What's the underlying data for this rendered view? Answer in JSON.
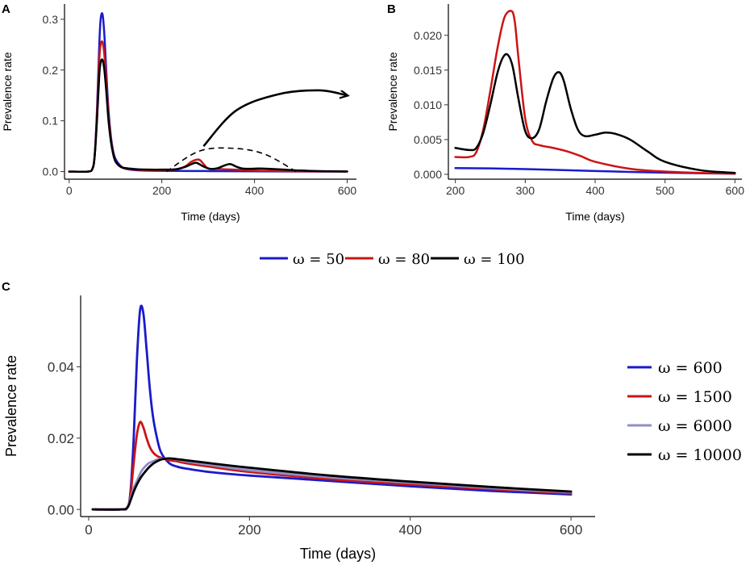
{
  "panels": {
    "a": {
      "tag": "A"
    },
    "b": {
      "tag": "B"
    },
    "c": {
      "tag": "C"
    }
  },
  "legend_top": {
    "items": [
      {
        "label": "ω = 50",
        "color": "#1a1acc"
      },
      {
        "label": "ω = 80",
        "color": "#cc1414"
      },
      {
        "label": "ω = 100",
        "color": "#000000"
      }
    ]
  },
  "legend_right": {
    "items": [
      {
        "label": "ω = 600",
        "color": "#1a1acc"
      },
      {
        "label": "ω = 1500",
        "color": "#cc1414"
      },
      {
        "label": "ω = 6000",
        "color": "#8f8fc8"
      },
      {
        "label": "ω = 10000",
        "color": "#000000"
      }
    ]
  },
  "chart_data": [
    {
      "id": "A",
      "type": "line",
      "title": "",
      "xlabel": "Time (days)",
      "ylabel": "Prevalence rate",
      "xlim": [
        -10,
        620
      ],
      "ylim": [
        -0.015,
        0.33
      ],
      "xticks": [
        0,
        200,
        400,
        600
      ],
      "yticks": [
        0.0,
        0.1,
        0.2,
        0.3
      ],
      "ytick_labels": [
        "0.0",
        "0.1",
        "0.2",
        "0.3"
      ],
      "series": [
        {
          "name": "ω = 50",
          "color": "#1a1acc",
          "x": [
            0,
            40,
            50,
            55,
            60,
            65,
            68,
            72,
            76,
            80,
            85,
            90,
            95,
            100,
            110,
            120,
            140,
            160,
            200,
            300,
            400,
            500,
            600
          ],
          "y": [
            0,
            0,
            0.005,
            0.03,
            0.12,
            0.25,
            0.3,
            0.31,
            0.27,
            0.2,
            0.12,
            0.07,
            0.04,
            0.025,
            0.012,
            0.006,
            0.003,
            0.002,
            0.0015,
            0.001,
            0.0005,
            0.0002,
            0.0001
          ]
        },
        {
          "name": "ω = 80",
          "color": "#cc1414",
          "x": [
            0,
            40,
            50,
            55,
            60,
            65,
            68,
            72,
            76,
            80,
            85,
            90,
            95,
            100,
            110,
            120,
            140,
            160,
            200,
            230,
            250,
            265,
            280,
            290,
            300,
            320,
            350,
            380,
            420,
            500,
            600
          ],
          "y": [
            0,
            0,
            0.005,
            0.03,
            0.11,
            0.22,
            0.25,
            0.255,
            0.23,
            0.18,
            0.11,
            0.065,
            0.035,
            0.02,
            0.01,
            0.006,
            0.004,
            0.003,
            0.003,
            0.004,
            0.01,
            0.02,
            0.0235,
            0.015,
            0.006,
            0.005,
            0.004,
            0.003,
            0.0015,
            0.0005,
            0.0001
          ]
        },
        {
          "name": "ω = 100",
          "color": "#000000",
          "x": [
            0,
            40,
            50,
            55,
            60,
            65,
            68,
            72,
            76,
            80,
            85,
            90,
            95,
            100,
            110,
            120,
            140,
            160,
            200,
            230,
            250,
            265,
            275,
            290,
            305,
            320,
            335,
            348,
            360,
            375,
            390,
            410,
            430,
            460,
            500,
            550,
            600
          ],
          "y": [
            0,
            0,
            0.005,
            0.03,
            0.1,
            0.19,
            0.215,
            0.22,
            0.2,
            0.16,
            0.1,
            0.06,
            0.035,
            0.02,
            0.01,
            0.007,
            0.005,
            0.004,
            0.0038,
            0.0045,
            0.009,
            0.015,
            0.0172,
            0.01,
            0.0052,
            0.0065,
            0.012,
            0.0147,
            0.01,
            0.0058,
            0.0055,
            0.006,
            0.0055,
            0.004,
            0.002,
            0.0007,
            0.0002
          ]
        }
      ],
      "annotations": [
        {
          "type": "dashed-arc",
          "x": [
            210,
            280,
            350,
            420,
            490
          ],
          "y": [
            0.0,
            0.04,
            0.046,
            0.035,
            0.0
          ]
        },
        {
          "type": "arrow",
          "x": [
            290,
            360,
            450,
            540,
            600
          ],
          "y": [
            0.05,
            0.12,
            0.152,
            0.16,
            0.15
          ]
        }
      ]
    },
    {
      "id": "B",
      "type": "line",
      "title": "",
      "xlabel": "Time (days)",
      "ylabel": "Prevalence rate",
      "xlim": [
        190,
        610
      ],
      "ylim": [
        -0.0007,
        0.0245
      ],
      "xticks": [
        200,
        300,
        400,
        500,
        600
      ],
      "yticks": [
        0.0,
        0.005,
        0.01,
        0.015,
        0.02
      ],
      "ytick_labels": [
        "0.000",
        "0.005",
        "0.010",
        "0.015",
        "0.020"
      ],
      "series": [
        {
          "name": "ω = 50",
          "color": "#1a1acc",
          "x": [
            200,
            250,
            300,
            350,
            400,
            450,
            500,
            550,
            600
          ],
          "y": [
            0.0009,
            0.00085,
            0.00075,
            0.00062,
            0.00048,
            0.00035,
            0.00024,
            0.00015,
            0.0001
          ]
        },
        {
          "name": "ω = 80",
          "color": "#cc1414",
          "x": [
            200,
            220,
            230,
            240,
            250,
            260,
            270,
            280,
            285,
            290,
            300,
            310,
            320,
            340,
            360,
            380,
            400,
            450,
            500,
            550,
            600
          ],
          "y": [
            0.0025,
            0.0025,
            0.0032,
            0.0065,
            0.012,
            0.018,
            0.0225,
            0.0235,
            0.022,
            0.017,
            0.008,
            0.0048,
            0.0042,
            0.0038,
            0.0033,
            0.0026,
            0.0018,
            0.0008,
            0.0004,
            0.0002,
            0.0001
          ]
        },
        {
          "name": "ω = 100",
          "color": "#000000",
          "x": [
            200,
            220,
            230,
            240,
            250,
            260,
            268,
            275,
            282,
            290,
            300,
            310,
            320,
            330,
            340,
            348,
            355,
            365,
            375,
            385,
            400,
            415,
            430,
            450,
            475,
            500,
            550,
            600
          ],
          "y": [
            0.0038,
            0.0035,
            0.0038,
            0.006,
            0.01,
            0.0145,
            0.0168,
            0.0172,
            0.0155,
            0.011,
            0.0062,
            0.0052,
            0.0065,
            0.0105,
            0.0138,
            0.0147,
            0.0135,
            0.0095,
            0.0065,
            0.0055,
            0.0057,
            0.006,
            0.0058,
            0.005,
            0.0033,
            0.0018,
            0.0006,
            0.0002
          ]
        }
      ],
      "annotations": []
    },
    {
      "id": "C",
      "type": "line",
      "title": "",
      "xlabel": "Time (days)",
      "ylabel": "Prevalence rate",
      "xlim": [
        -10,
        630
      ],
      "ylim": [
        -0.002,
        0.06
      ],
      "xticks": [
        0,
        200,
        400,
        600
      ],
      "yticks": [
        0.0,
        0.02,
        0.04
      ],
      "ytick_labels": [
        "0.00",
        "0.02",
        "0.04"
      ],
      "series": [
        {
          "name": "ω = 600",
          "color": "#1a1acc",
          "x": [
            5,
            40,
            48,
            52,
            56,
            60,
            64,
            68,
            72,
            76,
            80,
            85,
            90,
            100,
            110,
            120,
            150,
            200,
            300,
            400,
            500,
            600
          ],
          "y": [
            0,
            0,
            0.0005,
            0.005,
            0.02,
            0.042,
            0.056,
            0.055,
            0.045,
            0.034,
            0.026,
            0.02,
            0.016,
            0.013,
            0.012,
            0.0115,
            0.0105,
            0.0095,
            0.008,
            0.0065,
            0.0052,
            0.0042
          ]
        },
        {
          "name": "ω = 1500",
          "color": "#cc1414",
          "x": [
            5,
            40,
            48,
            52,
            56,
            60,
            64,
            68,
            72,
            76,
            80,
            85,
            90,
            100,
            110,
            120,
            150,
            200,
            300,
            400,
            500,
            600
          ],
          "y": [
            0,
            0,
            0.0005,
            0.004,
            0.013,
            0.021,
            0.0245,
            0.023,
            0.02,
            0.0175,
            0.016,
            0.015,
            0.0145,
            0.0138,
            0.0135,
            0.013,
            0.012,
            0.0105,
            0.0085,
            0.007,
            0.0057,
            0.0045
          ]
        },
        {
          "name": "ω = 6000",
          "color": "#8f8fc8",
          "x": [
            5,
            40,
            48,
            52,
            56,
            60,
            65,
            70,
            75,
            80,
            85,
            90,
            100,
            110,
            120,
            150,
            200,
            300,
            400,
            500,
            600
          ],
          "y": [
            0,
            0,
            0.0005,
            0.003,
            0.006,
            0.008,
            0.0105,
            0.012,
            0.013,
            0.0135,
            0.014,
            0.0142,
            0.0142,
            0.014,
            0.0135,
            0.0125,
            0.011,
            0.009,
            0.0075,
            0.006,
            0.0048
          ]
        },
        {
          "name": "ω = 10000",
          "color": "#000000",
          "x": [
            5,
            40,
            48,
            52,
            56,
            60,
            65,
            70,
            75,
            80,
            85,
            90,
            95,
            100,
            110,
            120,
            150,
            200,
            300,
            400,
            500,
            600
          ],
          "y": [
            0,
            0,
            0.0005,
            0.0025,
            0.005,
            0.007,
            0.009,
            0.0105,
            0.0118,
            0.0128,
            0.0135,
            0.014,
            0.0142,
            0.0143,
            0.0141,
            0.0138,
            0.013,
            0.0117,
            0.0095,
            0.0078,
            0.0063,
            0.005
          ]
        }
      ],
      "annotations": []
    }
  ]
}
